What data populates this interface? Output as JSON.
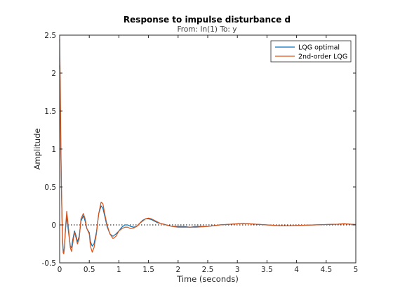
{
  "chart_data": {
    "type": "line",
    "title": "Response to impulse disturbance d",
    "subtitle": "From: In(1)  To: y",
    "xlabel": "Time (seconds)",
    "ylabel": "Amplitude",
    "xlim": [
      0,
      5
    ],
    "ylim": [
      -0.5,
      2.5
    ],
    "xticks": [
      0,
      0.5,
      1,
      1.5,
      2,
      2.5,
      3,
      3.5,
      4,
      4.5,
      5
    ],
    "xtick_labels": [
      "0",
      "0.5",
      "1",
      "1.5",
      "2",
      "2.5",
      "3",
      "3.5",
      "4",
      "4.5",
      "5"
    ],
    "yticks": [
      -0.5,
      0,
      0.5,
      1,
      1.5,
      2,
      2.5
    ],
    "ytick_labels": [
      "-0.5",
      "0",
      "0.5",
      "1",
      "1.5",
      "2",
      "2.5"
    ],
    "grid": false,
    "legend_position": "top-right",
    "zero_line": {
      "y": 0,
      "style": "dotted",
      "color": "#000000"
    },
    "series": [
      {
        "name": "LQG optimal",
        "color": "#0072BD",
        "x": [
          0,
          0.01,
          0.02,
          0.03,
          0.04,
          0.05,
          0.06,
          0.07,
          0.08,
          0.1,
          0.12,
          0.15,
          0.18,
          0.2,
          0.22,
          0.25,
          0.28,
          0.3,
          0.33,
          0.36,
          0.4,
          0.43,
          0.46,
          0.5,
          0.52,
          0.55,
          0.58,
          0.62,
          0.66,
          0.7,
          0.73,
          0.76,
          0.8,
          0.85,
          0.9,
          0.95,
          1.0,
          1.05,
          1.1,
          1.15,
          1.2,
          1.25,
          1.3,
          1.35,
          1.4,
          1.45,
          1.5,
          1.55,
          1.6,
          1.65,
          1.7,
          1.8,
          1.9,
          2.0,
          2.1,
          2.2,
          2.3,
          2.5,
          2.7,
          2.9,
          3.1,
          3.3,
          3.5,
          3.7,
          3.9,
          4.1,
          4.3,
          4.5,
          4.7,
          4.8,
          4.9,
          5.0
        ],
        "y": [
          2.1,
          1.6,
          1.0,
          0.48,
          0.1,
          -0.2,
          -0.33,
          -0.35,
          -0.3,
          -0.05,
          0.12,
          -0.1,
          -0.28,
          -0.3,
          -0.2,
          -0.08,
          -0.15,
          -0.22,
          -0.15,
          0.05,
          0.12,
          0.05,
          -0.05,
          -0.1,
          -0.22,
          -0.28,
          -0.25,
          -0.1,
          0.15,
          0.25,
          0.22,
          0.12,
          -0.02,
          -0.12,
          -0.15,
          -0.12,
          -0.08,
          -0.03,
          0.0,
          0.0,
          -0.02,
          -0.03,
          -0.02,
          0.02,
          0.06,
          0.08,
          0.08,
          0.07,
          0.05,
          0.03,
          0.02,
          0.0,
          -0.02,
          -0.02,
          -0.02,
          -0.03,
          -0.02,
          -0.02,
          0.0,
          0.01,
          0.02,
          0.01,
          0.0,
          -0.01,
          -0.01,
          -0.005,
          0.0,
          0.005,
          0.01,
          0.015,
          0.01,
          0.005
        ]
      },
      {
        "name": "2nd-order LQG",
        "color": "#D95319",
        "x": [
          0,
          0.01,
          0.02,
          0.03,
          0.04,
          0.05,
          0.06,
          0.07,
          0.08,
          0.1,
          0.12,
          0.15,
          0.18,
          0.2,
          0.22,
          0.25,
          0.28,
          0.3,
          0.33,
          0.36,
          0.4,
          0.43,
          0.46,
          0.5,
          0.52,
          0.55,
          0.58,
          0.62,
          0.66,
          0.7,
          0.73,
          0.76,
          0.8,
          0.85,
          0.9,
          0.95,
          1.0,
          1.05,
          1.1,
          1.15,
          1.2,
          1.25,
          1.3,
          1.35,
          1.4,
          1.45,
          1.5,
          1.55,
          1.6,
          1.65,
          1.7,
          1.8,
          1.9,
          2.0,
          2.1,
          2.2,
          2.3,
          2.5,
          2.7,
          2.9,
          3.1,
          3.3,
          3.5,
          3.7,
          3.9,
          4.1,
          4.3,
          4.5,
          4.7,
          4.8,
          4.9,
          5.0
        ],
        "y": [
          2.45,
          1.9,
          1.1,
          0.5,
          0.05,
          -0.25,
          -0.37,
          -0.38,
          -0.3,
          -0.02,
          0.18,
          -0.05,
          -0.3,
          -0.35,
          -0.25,
          -0.1,
          -0.18,
          -0.25,
          -0.18,
          0.08,
          0.15,
          0.08,
          -0.05,
          -0.12,
          -0.28,
          -0.36,
          -0.3,
          -0.12,
          0.15,
          0.3,
          0.28,
          0.15,
          0.0,
          -0.12,
          -0.18,
          -0.15,
          -0.08,
          -0.05,
          -0.03,
          -0.03,
          -0.05,
          -0.04,
          -0.02,
          0.02,
          0.05,
          0.08,
          0.09,
          0.08,
          0.06,
          0.04,
          0.02,
          0.0,
          -0.02,
          -0.03,
          -0.03,
          -0.03,
          -0.03,
          -0.02,
          0.0,
          0.01,
          0.02,
          0.01,
          0.0,
          -0.01,
          -0.01,
          -0.005,
          0.0,
          0.005,
          0.01,
          0.015,
          0.01,
          0.005
        ]
      }
    ]
  }
}
